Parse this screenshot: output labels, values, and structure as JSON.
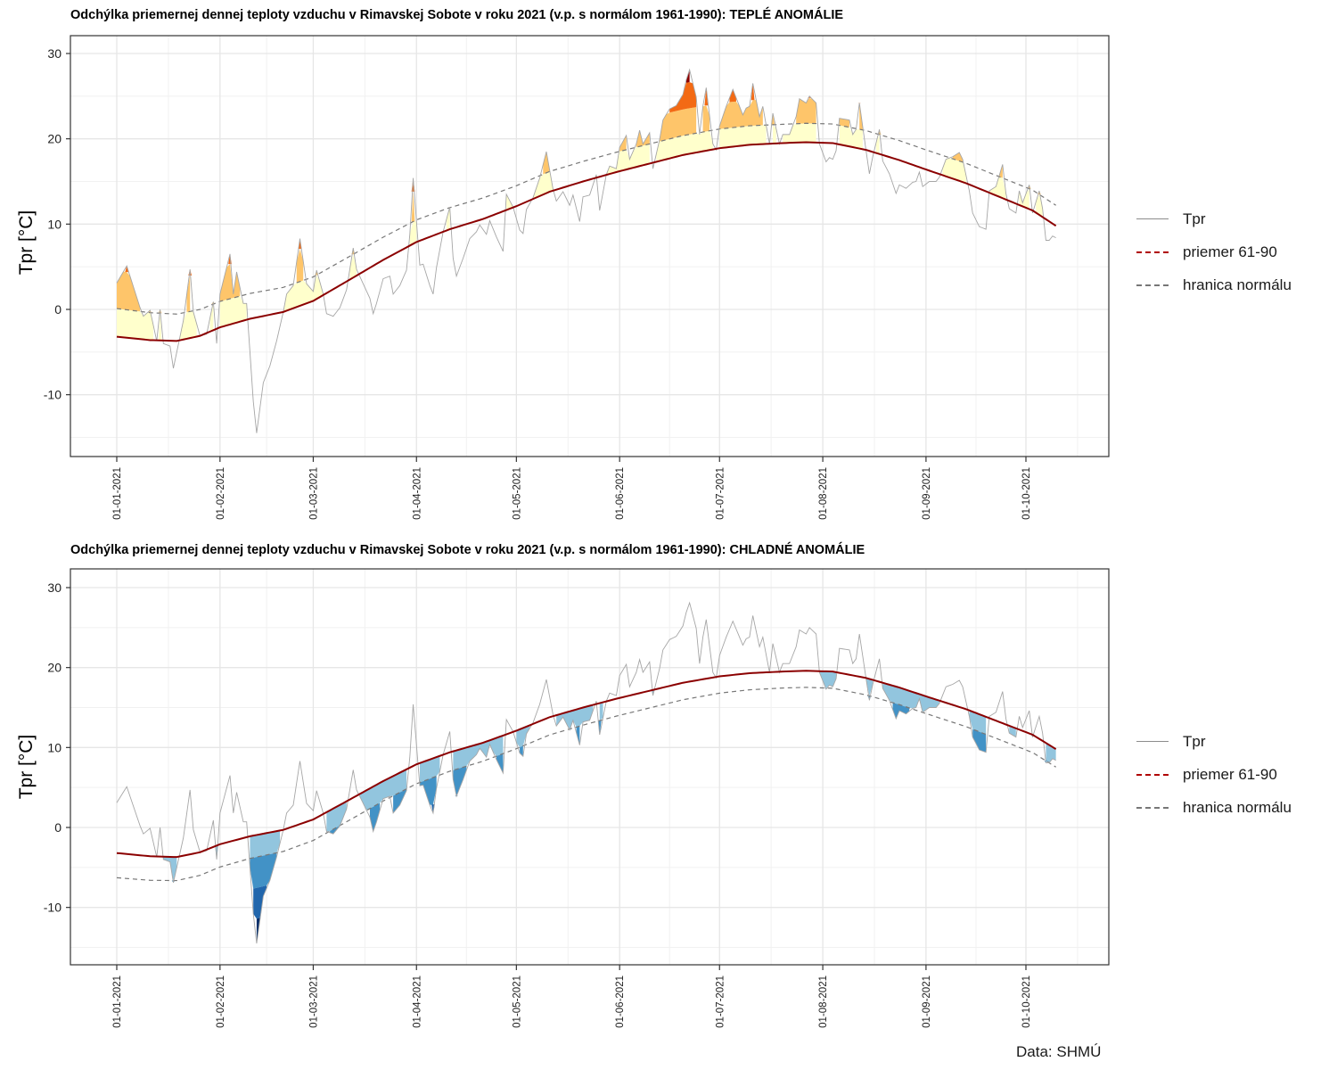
{
  "chart_data": [
    {
      "type": "area",
      "title": "Odchýlka priemernej dennej teploty vzduchu v Rimavskej Sobote v roku 2021 (v.p. s normálom 1961-1990): TEPLÉ ANOMÁLIE",
      "ylabel": "Tpr [°C]",
      "xlabel": "",
      "ylim": [
        -17,
        32
      ],
      "yticks": [
        "30",
        "20",
        "10",
        "0",
        "-10"
      ],
      "ytick_values": [
        30,
        20,
        10,
        0,
        -10
      ],
      "side": "warm",
      "band_colors": [
        "#FFFFCC",
        "#FEC56A",
        "#F36A14",
        "#8B0000"
      ],
      "legend_position": "right"
    },
    {
      "type": "area",
      "title": "Odchýlka priemernej dennej teploty vzduchu v Rimavskej Sobote v roku 2021 (v.p. s normálom 1961-1990): CHLADNÉ ANOMÁLIE",
      "ylabel": "Tpr [°C]",
      "xlabel": "",
      "ylim": [
        -17,
        32
      ],
      "yticks": [
        "30",
        "20",
        "10",
        "0",
        "-10"
      ],
      "ytick_values": [
        30,
        20,
        10,
        0,
        -10
      ],
      "side": "cold",
      "band_colors": [
        "#92C5DE",
        "#4292C6",
        "#2166AC",
        "#08306B"
      ],
      "legend_position": "right"
    }
  ],
  "shared": {
    "xticks": [
      "01-01-2021",
      "01-02-2021",
      "01-03-2021",
      "01-04-2021",
      "01-05-2021",
      "01-06-2021",
      "01-07-2021",
      "01-08-2021",
      "01-09-2021",
      "01-10-2021"
    ],
    "xtick_days": [
      0,
      31,
      59,
      90,
      120,
      151,
      181,
      212,
      243,
      273
    ],
    "xlim_days": [
      -14,
      296
    ],
    "tpr_keypoints": [
      [
        0,
        3.1
      ],
      [
        3,
        5.1
      ],
      [
        7,
        0.2
      ],
      [
        8,
        -0.8
      ],
      [
        10,
        -0.1
      ],
      [
        12,
        -3.7
      ],
      [
        13,
        0
      ],
      [
        14,
        -4.0
      ],
      [
        16,
        -4.3
      ],
      [
        17,
        -6.9
      ],
      [
        20,
        -1.3
      ],
      [
        22,
        4.7
      ],
      [
        23,
        -0.3
      ],
      [
        25,
        -3.1
      ],
      [
        27,
        -2.9
      ],
      [
        29,
        0.9
      ],
      [
        30,
        -4.0
      ],
      [
        31,
        1.8
      ],
      [
        34,
        6.5
      ],
      [
        35,
        1.8
      ],
      [
        36,
        4.4
      ],
      [
        38,
        0.7
      ],
      [
        39,
        0.7
      ],
      [
        41,
        -10.8
      ],
      [
        42,
        -14.5
      ],
      [
        44,
        -8.6
      ],
      [
        46,
        -6.6
      ],
      [
        48,
        -3.7
      ],
      [
        50,
        -0.3
      ],
      [
        51,
        1.8
      ],
      [
        53,
        2.8
      ],
      [
        55,
        8.3
      ],
      [
        57,
        3.0
      ],
      [
        59,
        2.1
      ],
      [
        60,
        4.6
      ],
      [
        62,
        1.8
      ],
      [
        63,
        -0.5
      ],
      [
        65,
        -0.8
      ],
      [
        67,
        0.2
      ],
      [
        69,
        2.3
      ],
      [
        71,
        7.2
      ],
      [
        72,
        4.7
      ],
      [
        74,
        3.0
      ],
      [
        76,
        1.3
      ],
      [
        77,
        -0.5
      ],
      [
        78,
        0.7
      ],
      [
        80,
        3.6
      ],
      [
        82,
        3.9
      ],
      [
        83,
        1.8
      ],
      [
        85,
        2.8
      ],
      [
        87,
        4.6
      ],
      [
        88,
        8.8
      ],
      [
        89,
        15.4
      ],
      [
        91,
        5.2
      ],
      [
        92,
        5.3
      ],
      [
        94,
        2.8
      ],
      [
        95,
        1.8
      ],
      [
        96,
        4.9
      ],
      [
        98,
        9.1
      ],
      [
        100,
        12.0
      ],
      [
        101,
        6.0
      ],
      [
        102,
        3.9
      ],
      [
        104,
        6.0
      ],
      [
        106,
        8.3
      ],
      [
        108,
        9.1
      ],
      [
        109,
        9.9
      ],
      [
        111,
        8.8
      ],
      [
        112,
        10.4
      ],
      [
        114,
        8.5
      ],
      [
        116,
        6.8
      ],
      [
        117,
        13.5
      ],
      [
        119,
        12.0
      ],
      [
        121,
        9.3
      ],
      [
        122,
        8.9
      ],
      [
        123,
        11.7
      ],
      [
        125,
        13.1
      ],
      [
        127,
        15.4
      ],
      [
        129,
        18.5
      ],
      [
        131,
        14.1
      ],
      [
        132,
        12.7
      ],
      [
        134,
        13.8
      ],
      [
        136,
        12.2
      ],
      [
        137,
        13.4
      ],
      [
        139,
        10.3
      ],
      [
        140,
        13.2
      ],
      [
        142,
        13.4
      ],
      [
        144,
        15.8
      ],
      [
        145,
        11.6
      ],
      [
        147,
        15.8
      ],
      [
        148,
        16.8
      ],
      [
        150,
        16.5
      ],
      [
        151,
        19.0
      ],
      [
        153,
        20.4
      ],
      [
        154,
        17.6
      ],
      [
        156,
        19.4
      ],
      [
        157,
        21.0
      ],
      [
        158,
        19.4
      ],
      [
        160,
        20.7
      ],
      [
        161,
        16.5
      ],
      [
        163,
        19.9
      ],
      [
        164,
        22.2
      ],
      [
        166,
        23.5
      ],
      [
        168,
        23.9
      ],
      [
        170,
        25.2
      ],
      [
        171,
        26.9
      ],
      [
        172,
        28.1
      ],
      [
        174,
        24.9
      ],
      [
        175,
        20.5
      ],
      [
        176,
        23.8
      ],
      [
        177,
        26.0
      ],
      [
        179,
        19.4
      ],
      [
        180,
        18.7
      ],
      [
        181,
        21.5
      ],
      [
        183,
        23.8
      ],
      [
        185,
        25.8
      ],
      [
        187,
        23.8
      ],
      [
        188,
        22.8
      ],
      [
        189,
        23.6
      ],
      [
        190,
        23.8
      ],
      [
        191,
        26.5
      ],
      [
        193,
        22.6
      ],
      [
        194,
        23.8
      ],
      [
        196,
        19.4
      ],
      [
        197,
        23.0
      ],
      [
        199,
        19.4
      ],
      [
        200,
        20.5
      ],
      [
        202,
        20.5
      ],
      [
        204,
        22.6
      ],
      [
        205,
        24.7
      ],
      [
        207,
        24.2
      ],
      [
        208,
        25.0
      ],
      [
        210,
        24.2
      ],
      [
        211,
        19.4
      ],
      [
        213,
        17.3
      ],
      [
        214,
        17.8
      ],
      [
        215,
        17.6
      ],
      [
        216,
        18.6
      ],
      [
        217,
        22.4
      ],
      [
        220,
        22.2
      ],
      [
        221,
        20.5
      ],
      [
        222,
        21.1
      ],
      [
        223,
        24.2
      ],
      [
        225,
        18.6
      ],
      [
        226,
        15.9
      ],
      [
        227,
        17.9
      ],
      [
        229,
        21.1
      ],
      [
        230,
        17.4
      ],
      [
        232,
        15.9
      ],
      [
        234,
        13.6
      ],
      [
        235,
        14.6
      ],
      [
        237,
        14.2
      ],
      [
        239,
        14.9
      ],
      [
        240,
        15.0
      ],
      [
        241,
        16.1
      ],
      [
        242,
        14.4
      ],
      [
        244,
        15.0
      ],
      [
        246,
        15.0
      ],
      [
        247,
        15.5
      ],
      [
        249,
        17.6
      ],
      [
        251,
        17.9
      ],
      [
        253,
        18.4
      ],
      [
        254,
        17.6
      ],
      [
        256,
        13.9
      ],
      [
        257,
        11.3
      ],
      [
        259,
        9.7
      ],
      [
        261,
        9.4
      ],
      [
        262,
        13.9
      ],
      [
        264,
        14.4
      ],
      [
        266,
        17.0
      ],
      [
        267,
        13.6
      ],
      [
        268,
        11.8
      ],
      [
        270,
        11.3
      ],
      [
        271,
        13.9
      ],
      [
        272,
        12.5
      ],
      [
        274,
        14.6
      ],
      [
        275,
        11.3
      ],
      [
        277,
        13.9
      ],
      [
        278,
        11.8
      ],
      [
        279,
        8.1
      ],
      [
        280,
        8.1
      ],
      [
        281,
        8.6
      ],
      [
        282,
        8.4
      ]
    ],
    "mean_keypoints": [
      [
        0,
        -3.2
      ],
      [
        10,
        -3.6
      ],
      [
        18,
        -3.7
      ],
      [
        25,
        -3.1
      ],
      [
        31,
        -2.1
      ],
      [
        40,
        -1.1
      ],
      [
        50,
        -0.3
      ],
      [
        59,
        1.0
      ],
      [
        70,
        3.5
      ],
      [
        80,
        5.8
      ],
      [
        90,
        7.9
      ],
      [
        100,
        9.4
      ],
      [
        110,
        10.6
      ],
      [
        120,
        12.1
      ],
      [
        130,
        13.8
      ],
      [
        140,
        15.0
      ],
      [
        150,
        16.1
      ],
      [
        160,
        17.1
      ],
      [
        170,
        18.1
      ],
      [
        181,
        18.9
      ],
      [
        190,
        19.3
      ],
      [
        200,
        19.5
      ],
      [
        207,
        19.6
      ],
      [
        215,
        19.5
      ],
      [
        225,
        18.7
      ],
      [
        235,
        17.5
      ],
      [
        243,
        16.4
      ],
      [
        255,
        14.8
      ],
      [
        265,
        13.2
      ],
      [
        275,
        11.6
      ],
      [
        282,
        9.8
      ]
    ],
    "band_offsets": [
      {
        "day": 0,
        "sd": 3.3
      },
      {
        "day": 60,
        "sd": 2.8
      },
      {
        "day": 120,
        "sd": 2.4
      },
      {
        "day": 200,
        "sd": 2.2
      },
      {
        "day": 282,
        "sd": 2.4
      }
    ],
    "lower_bound_scale": 0.85
  },
  "legend": {
    "items": [
      {
        "label": "Tpr",
        "color": "#8c8c8c",
        "style": "solid"
      },
      {
        "label": "priemer 61-90",
        "color": "#8B0000",
        "style": "dashed"
      },
      {
        "label": "hranica normálu",
        "color": "#6e6e6e",
        "style": "dashed"
      }
    ]
  },
  "credit": "Data: SHMÚ"
}
